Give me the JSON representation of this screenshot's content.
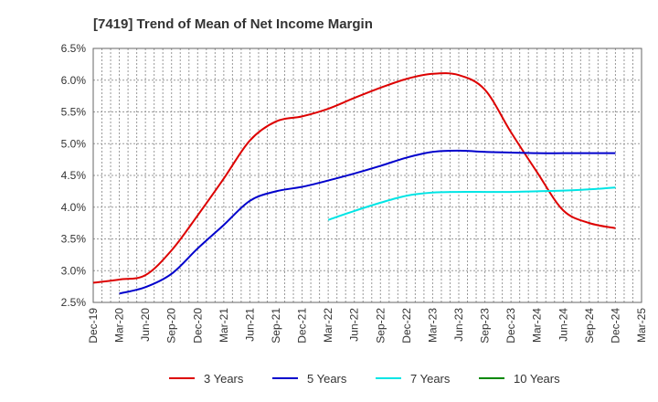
{
  "chart_data": {
    "type": "line",
    "title": "[7419]  Trend of Mean of Net Income Margin",
    "xlabel": "",
    "ylabel": "",
    "ylim": [
      2.5,
      6.5
    ],
    "yticks": [
      2.5,
      3.0,
      3.5,
      4.0,
      4.5,
      5.0,
      5.5,
      6.0,
      6.5
    ],
    "ytick_labels": [
      "2.5%",
      "3.0%",
      "3.5%",
      "4.0%",
      "4.5%",
      "5.0%",
      "5.5%",
      "6.0%",
      "6.5%"
    ],
    "x": [
      "Dec-19",
      "Mar-20",
      "Jun-20",
      "Sep-20",
      "Dec-20",
      "Mar-21",
      "Jun-21",
      "Sep-21",
      "Dec-21",
      "Mar-22",
      "Jun-22",
      "Sep-22",
      "Dec-22",
      "Mar-23",
      "Jun-23",
      "Sep-23",
      "Dec-23",
      "Mar-24",
      "Jun-24",
      "Sep-24",
      "Dec-24",
      "Mar-25"
    ],
    "grid": true,
    "legend_position": "bottom",
    "series": [
      {
        "name": "3 Years",
        "color": "#dd0000",
        "values": [
          2.81,
          2.86,
          2.93,
          3.32,
          3.87,
          4.45,
          5.05,
          5.35,
          5.43,
          5.55,
          5.72,
          5.88,
          6.02,
          6.1,
          6.08,
          5.85,
          5.18,
          4.55,
          3.95,
          3.75,
          3.67,
          null
        ]
      },
      {
        "name": "5 Years",
        "color": "#0000cc",
        "values": [
          null,
          2.64,
          2.74,
          2.95,
          3.35,
          3.72,
          4.1,
          4.25,
          4.32,
          4.42,
          4.53,
          4.65,
          4.78,
          4.87,
          4.89,
          4.87,
          4.86,
          4.85,
          4.85,
          4.85,
          4.85,
          null
        ]
      },
      {
        "name": "7 Years",
        "color": "#00e5e5",
        "values": [
          null,
          null,
          null,
          null,
          null,
          null,
          null,
          null,
          null,
          3.8,
          3.94,
          4.07,
          4.18,
          4.23,
          4.24,
          4.24,
          4.24,
          4.25,
          4.26,
          4.28,
          4.31,
          null
        ]
      },
      {
        "name": "10 Years",
        "color": "#008800",
        "values": [
          null,
          null,
          null,
          null,
          null,
          null,
          null,
          null,
          null,
          null,
          null,
          null,
          null,
          null,
          null,
          null,
          null,
          null,
          null,
          null,
          null,
          null
        ]
      }
    ]
  }
}
